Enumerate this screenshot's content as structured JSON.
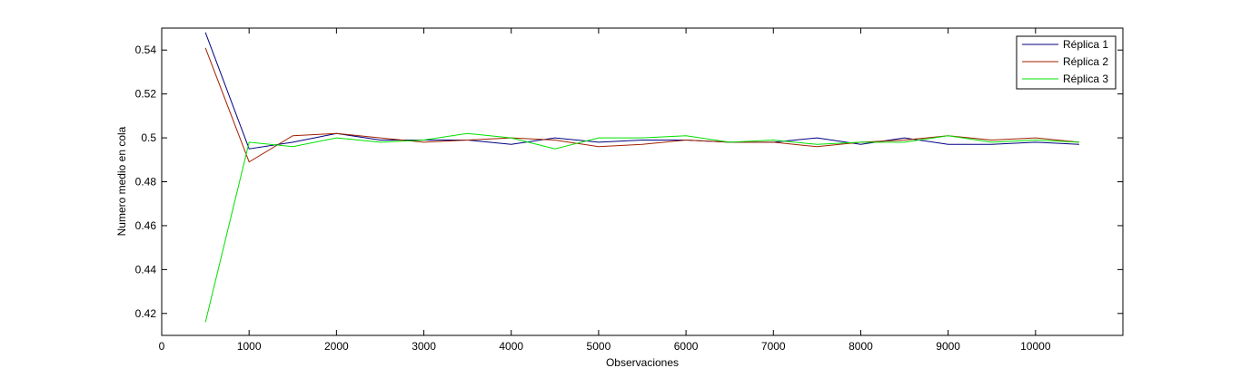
{
  "chart_data": {
    "type": "line",
    "title": "",
    "xlabel": "Observaciones",
    "ylabel": "Numero medio en cola",
    "xlim": [
      0,
      11000
    ],
    "ylim": [
      0.41,
      0.55
    ],
    "xticks": [
      0,
      1000,
      2000,
      3000,
      4000,
      5000,
      6000,
      7000,
      8000,
      9000,
      10000
    ],
    "xtick_labels": [
      "0",
      "1000",
      "2000",
      "3000",
      "4000",
      "5000",
      "6000",
      "7000",
      "8000",
      "9000",
      "10000"
    ],
    "yticks": [
      0.42,
      0.44,
      0.46,
      0.48,
      0.5,
      0.52,
      0.54
    ],
    "ytick_labels": [
      "0.42",
      "0.44",
      "0.46",
      "0.48",
      "0.5",
      "0.52",
      "0.54"
    ],
    "grid": false,
    "legend_position": "top-right",
    "x": [
      500,
      1000,
      1500,
      2000,
      2500,
      3000,
      3500,
      4000,
      4500,
      5000,
      5500,
      6000,
      6500,
      7000,
      7500,
      8000,
      8500,
      9000,
      9500,
      10000,
      10500
    ],
    "series": [
      {
        "name": "Réplica 1",
        "color": "#000080",
        "values": [
          0.548,
          0.495,
          0.498,
          0.502,
          0.499,
          0.499,
          0.499,
          0.497,
          0.5,
          0.498,
          0.499,
          0.499,
          0.498,
          0.498,
          0.5,
          0.497,
          0.5,
          0.497,
          0.497,
          0.498,
          0.497
        ]
      },
      {
        "name": "Réplica 2",
        "color": "#a02000",
        "values": [
          0.541,
          0.489,
          0.501,
          0.502,
          0.5,
          0.498,
          0.499,
          0.5,
          0.499,
          0.496,
          0.497,
          0.499,
          0.498,
          0.498,
          0.496,
          0.498,
          0.499,
          0.501,
          0.499,
          0.5,
          0.498
        ]
      },
      {
        "name": "Réplica 3",
        "color": "#00e000",
        "values": [
          0.416,
          0.498,
          0.496,
          0.5,
          0.498,
          0.499,
          0.502,
          0.5,
          0.495,
          0.5,
          0.5,
          0.501,
          0.498,
          0.499,
          0.497,
          0.498,
          0.498,
          0.501,
          0.498,
          0.499,
          0.498
        ]
      }
    ]
  }
}
